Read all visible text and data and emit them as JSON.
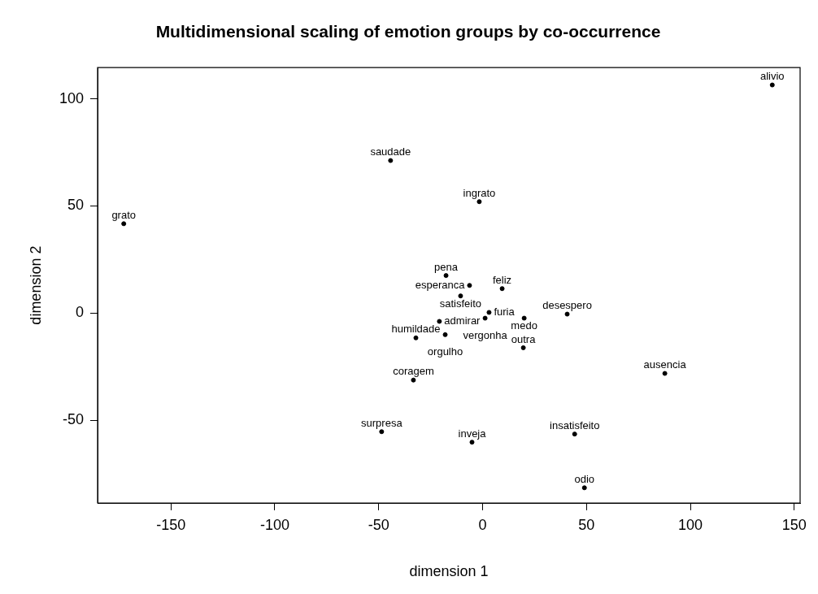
{
  "chart_data": {
    "type": "scatter",
    "title": "Multidimensional scaling of emotion groups by co-occurrence",
    "xlabel": "dimension 1",
    "ylabel": "dimension 2",
    "marker": "circle",
    "grid": false,
    "legend": false,
    "xlim": [
      -185.3,
      152.8
    ],
    "ylim": [
      -88.7,
      114.6
    ],
    "xticks": [
      -150,
      -100,
      -50,
      0,
      50,
      100,
      150
    ],
    "yticks": [
      -50,
      0,
      50,
      100
    ],
    "series": [
      {
        "color": "#000000",
        "x": [
          139.4,
          -44.3,
          -1.6,
          -172.7,
          -17.6,
          -6.3,
          9.4,
          -10.6,
          3.1,
          40.7,
          -20.8,
          1.2,
          20,
          -32.1,
          -18,
          19.6,
          -33.3,
          87.7,
          -48.6,
          -5.1,
          44.3,
          49
        ],
        "values": [
          106.5,
          71.2,
          52.0,
          41.7,
          17.5,
          12.9,
          11.4,
          8.0,
          0.3,
          -0.5,
          -3.9,
          -2.4,
          -2.4,
          -11.6,
          -10.1,
          -16.2,
          -31.3,
          -28.2,
          -55.4,
          -60.3,
          -56.5,
          -81.6
        ],
        "value_labels": [
          "alivio",
          "saudade",
          "ingrato",
          "grato",
          "pena",
          "esperanca",
          "feliz",
          "satisfeito",
          "furia",
          "desespero",
          "admirar",
          "vergonha",
          "medo",
          "humildade",
          "orgulho",
          "outra",
          "coragem",
          "ausencia",
          "surpresa",
          "inveja",
          "insatisfeito",
          "odio"
        ]
      }
    ]
  }
}
